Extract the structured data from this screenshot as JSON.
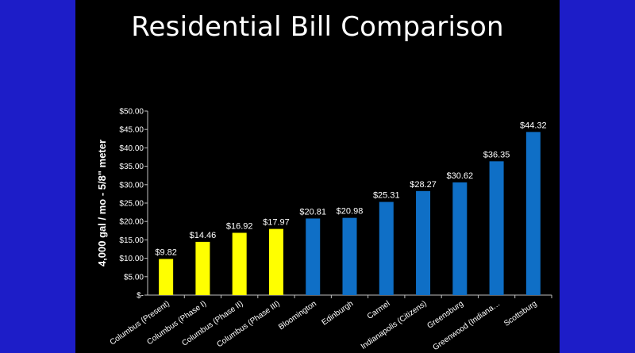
{
  "slide": {
    "title": "Residential Bill Comparison",
    "background": "#000000",
    "frame_color": "#1d1dc8"
  },
  "chart_data": {
    "type": "bar",
    "title": "Residential Bill Comparison",
    "xlabel": "",
    "ylabel": "4,000 gal / mo - 5/8\" meter",
    "ylim": [
      0,
      50
    ],
    "ytick_labels": [
      "$-",
      "$5.00",
      "$10.00",
      "$15.00",
      "$20.00",
      "$25.00",
      "$30.00",
      "$35.00",
      "$40.00",
      "$45.00",
      "$50.00"
    ],
    "ytick_values": [
      0,
      5,
      10,
      15,
      20,
      25,
      30,
      35,
      40,
      45,
      50
    ],
    "grid": false,
    "categories": [
      "Columbus (Present)",
      "Columbus (Phase I)",
      "Columbus (Phase II)",
      "Columbus (Phase III)",
      "Bloomington",
      "Edinburgh",
      "Carmel",
      "Indianapolis (Citizens)",
      "Greensburg",
      "Greenwood (Indiana…",
      "Scottsburg"
    ],
    "values": [
      9.82,
      14.46,
      16.92,
      17.97,
      20.81,
      20.98,
      25.31,
      28.27,
      30.62,
      36.35,
      44.32
    ],
    "data_labels": [
      "$9.82",
      "$14.46",
      "$16.92",
      "$17.97",
      "$20.81",
      "$20.98",
      "$25.31",
      "$28.27",
      "$30.62",
      "$36.35",
      "$44.32"
    ],
    "bar_colors": [
      "#ffff00",
      "#ffff00",
      "#ffff00",
      "#ffff00",
      "#0f6fc6",
      "#0f6fc6",
      "#0f6fc6",
      "#0f6fc6",
      "#0f6fc6",
      "#0f6fc6",
      "#0f6fc6"
    ],
    "text_color": "#ffffff",
    "axis_color": "#bfbfbf"
  }
}
